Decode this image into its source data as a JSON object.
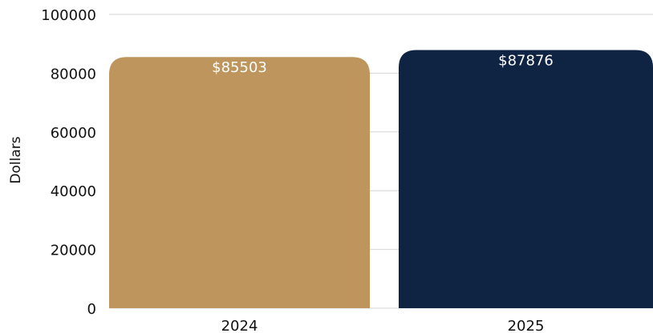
{
  "chart_data": {
    "type": "bar",
    "categories": [
      "2024",
      "2025"
    ],
    "values": [
      85503,
      87876
    ],
    "value_labels": [
      "$85503",
      "$87876"
    ],
    "colors": [
      "#bd955d",
      "#0f2342"
    ],
    "ylabel": "Dollars",
    "xlabel": "",
    "title": "",
    "ylim": [
      0,
      100000
    ],
    "yticks": [
      0,
      20000,
      40000,
      60000,
      80000,
      100000
    ],
    "ytick_labels": [
      "0",
      "20000",
      "40000",
      "60000",
      "80000",
      "100000"
    ],
    "grid": true,
    "legend": false
  }
}
